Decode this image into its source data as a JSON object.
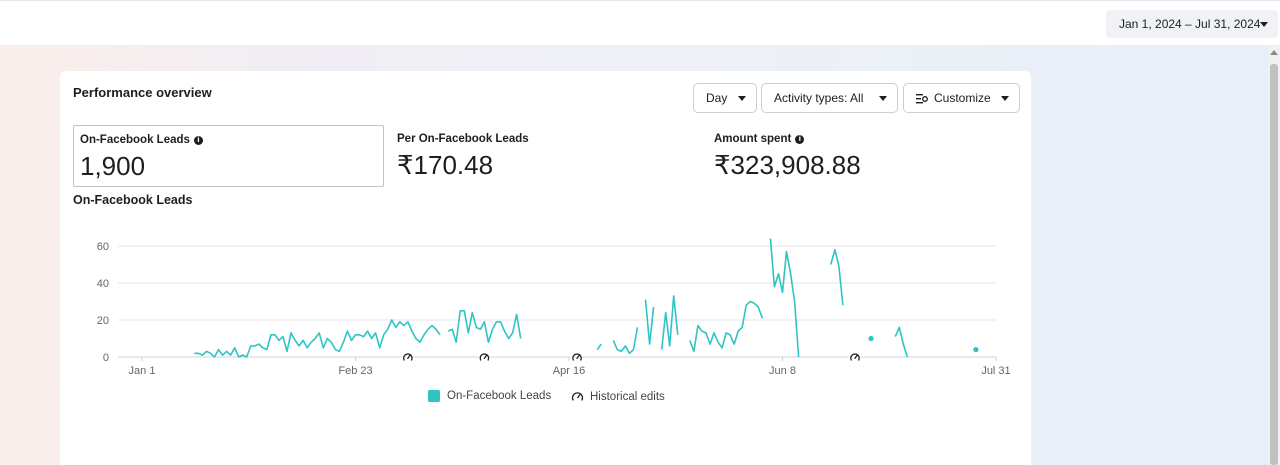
{
  "header": {
    "date_range": "Jan 1, 2024 – Jul 31, 2024"
  },
  "card": {
    "title": "Performance overview",
    "controls": {
      "day": "Day",
      "activity_types": "Activity types: All",
      "customize": "Customize"
    }
  },
  "metrics": [
    {
      "label": "On-Facebook Leads",
      "value": "1,900",
      "info": true,
      "selected": true
    },
    {
      "label": "Per On-Facebook Leads",
      "value": "₹170.48",
      "info": false,
      "selected": false
    },
    {
      "label": "Amount spent",
      "value": "₹323,908.88",
      "info": true,
      "selected": false
    }
  ],
  "chart_title": "On-Facebook Leads",
  "chart_data": {
    "type": "line",
    "y_ticks": [
      0,
      20,
      40,
      60
    ],
    "ylim": [
      0,
      60
    ],
    "x_ticks": [
      "Jan 1",
      "Feb 23",
      "Apr 16",
      "Jun 8",
      "Jul 31"
    ],
    "x_tick_days": [
      0,
      53,
      106,
      159,
      212
    ],
    "grid": true,
    "series": [
      {
        "name": "On-Facebook Leads",
        "color": "#2ec4c4",
        "start_date": "Jan 1, 2024",
        "values": [
          null,
          null,
          null,
          null,
          null,
          null,
          null,
          null,
          null,
          null,
          null,
          null,
          null,
          2,
          2,
          1,
          3,
          2,
          0,
          4,
          1,
          3,
          1,
          5,
          0,
          1,
          0,
          6,
          6,
          7,
          5,
          4,
          12,
          12,
          9,
          11,
          3,
          13,
          9,
          6,
          9,
          5,
          8,
          10,
          13,
          5,
          10,
          8,
          4,
          3,
          8,
          14,
          9,
          12,
          12,
          11,
          14,
          10,
          13,
          5,
          12,
          15,
          20,
          16,
          19,
          17,
          19,
          14,
          10,
          8,
          12,
          15,
          17,
          15,
          12,
          null,
          14,
          15,
          8,
          25,
          25,
          13,
          24,
          16,
          15,
          19,
          8,
          15,
          19,
          19,
          14,
          10,
          13,
          23,
          10,
          null,
          null,
          null,
          null,
          null,
          null,
          null,
          null,
          null,
          null,
          null,
          null,
          null,
          null,
          null,
          null,
          null,
          null,
          4,
          7,
          null,
          null,
          9,
          4,
          3,
          6,
          2,
          4,
          16,
          null,
          31,
          7,
          27,
          null,
          4,
          24,
          6,
          33,
          12,
          null,
          null,
          9,
          3,
          17,
          14,
          13,
          7,
          13,
          8,
          5,
          13,
          12,
          7,
          14,
          16,
          28,
          30,
          29,
          27,
          21,
          null,
          64,
          38,
          45,
          35,
          57,
          45,
          30,
          0,
          null,
          null,
          null,
          null,
          null,
          null,
          null,
          50,
          58,
          49,
          28,
          null,
          null,
          null,
          null,
          null,
          null,
          10,
          null,
          null,
          null,
          null,
          null,
          11,
          16,
          7,
          0,
          null,
          null,
          null,
          null,
          null,
          null,
          null,
          null,
          null,
          null,
          null,
          null,
          null,
          null,
          null,
          null,
          4,
          null,
          null,
          null,
          null,
          null,
          null,
          null,
          null,
          null,
          null,
          null,
          null,
          null,
          null,
          null,
          null,
          null,
          null,
          null
        ]
      }
    ],
    "historical_edits_days": [
      66,
      85,
      108,
      177
    ],
    "legend": [
      {
        "label": "On-Facebook Leads",
        "type": "series"
      },
      {
        "label": "Historical edits",
        "type": "marker"
      }
    ],
    "legend_position": "bottom-center"
  }
}
